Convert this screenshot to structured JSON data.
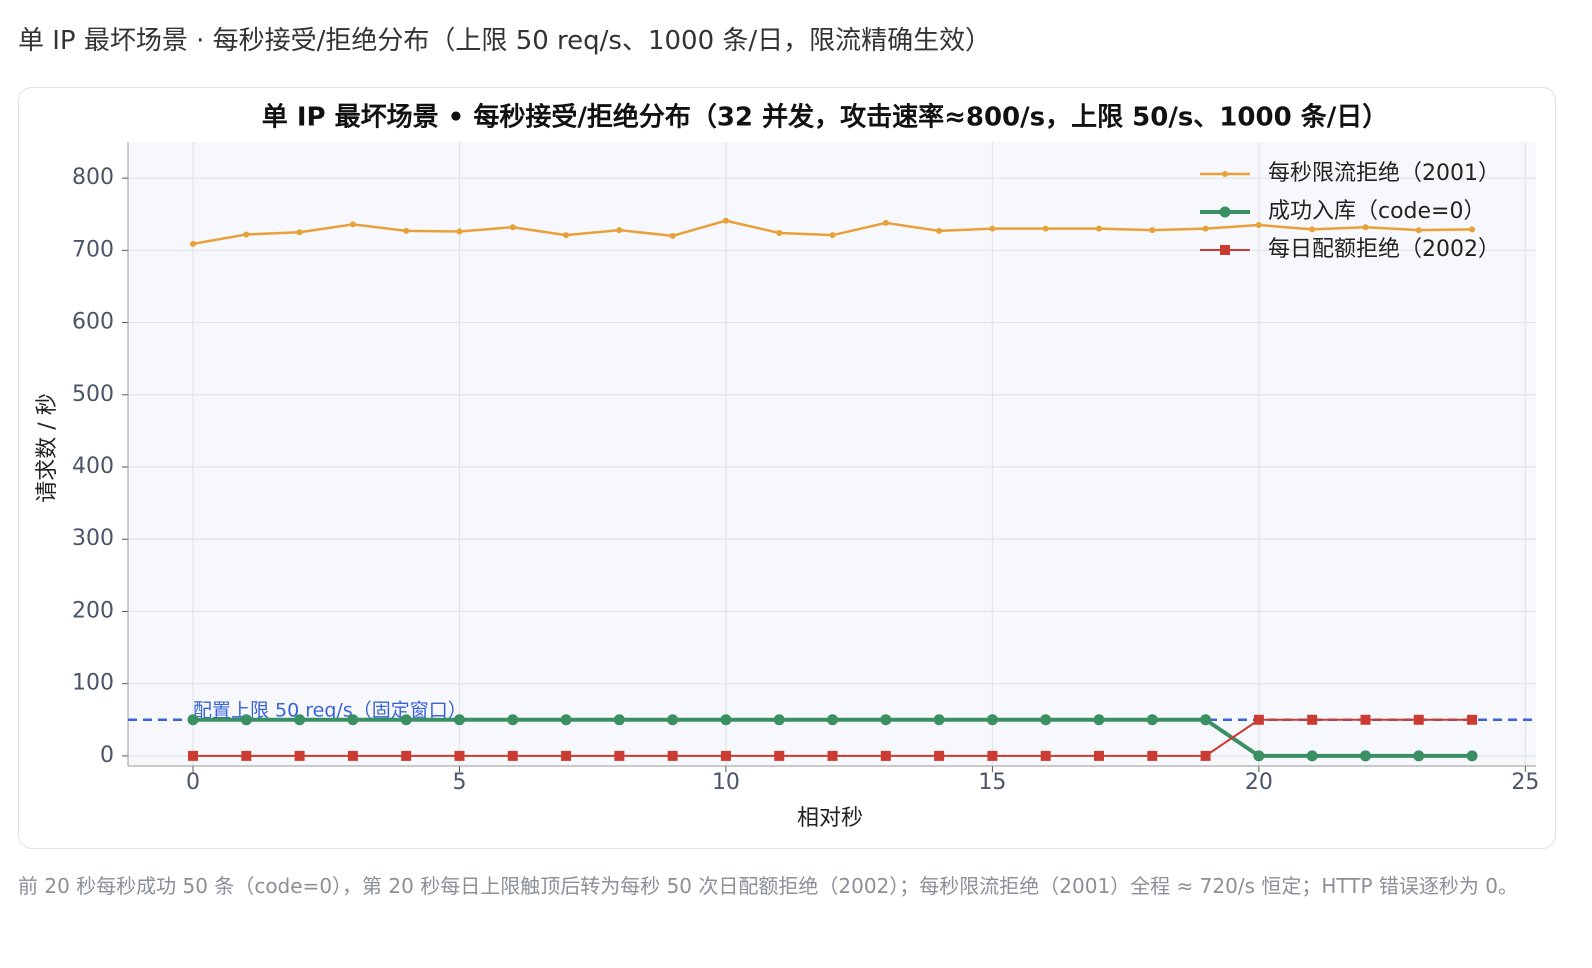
{
  "heading": "单 IP 最坏场景 · 每秒接受/拒绝分布（上限 50 req/s、1000 条/日，限流精确生效）",
  "caption": "前 20 秒每秒成功 50 条（code=0），第 20 秒每日上限触顶后转为每秒 50 次日配额拒绝（2002）；每秒限流拒绝（2001）全程 ≈ 720/s 恒定；HTTP 错误逐秒为 0。",
  "chart_data": {
    "type": "line",
    "title": "单 IP 最坏场景 • 每秒接受/拒绝分布（32 并发，攻击速率≈800/s，上限 50/s、1000 条/日）",
    "x_label": "相对秒",
    "y_label": "请求数 / 秒",
    "x": [
      0,
      1,
      2,
      3,
      4,
      5,
      6,
      7,
      8,
      9,
      10,
      11,
      12,
      13,
      14,
      15,
      16,
      17,
      18,
      19,
      20,
      21,
      22,
      23,
      24
    ],
    "series": [
      {
        "name": "每秒限流拒绝（2001）",
        "color": "#e8a03a",
        "marker": "dot",
        "values": [
          709,
          722,
          725,
          736,
          727,
          726,
          732,
          721,
          728,
          720,
          741,
          724,
          721,
          738,
          727,
          730,
          730,
          730,
          728,
          730,
          735,
          729,
          732,
          728,
          729
        ]
      },
      {
        "name": "成功入库（code=0）",
        "color": "#3a8f63",
        "marker": "circle",
        "values": [
          50,
          50,
          50,
          50,
          50,
          50,
          50,
          50,
          50,
          50,
          50,
          50,
          50,
          50,
          50,
          50,
          50,
          50,
          50,
          50,
          0,
          0,
          0,
          0,
          0
        ]
      },
      {
        "name": "每日配额拒绝（2002）",
        "color": "#cc3b32",
        "marker": "square",
        "values": [
          0,
          0,
          0,
          0,
          0,
          0,
          0,
          0,
          0,
          0,
          0,
          0,
          0,
          0,
          0,
          0,
          0,
          0,
          0,
          0,
          50,
          50,
          50,
          50,
          50
        ]
      }
    ],
    "hline": {
      "value": 50,
      "label": "配置上限 50 req/s（固定窗口）",
      "color": "#3a62d9"
    },
    "xlim": [
      -1.22,
      25.2
    ],
    "ylim": [
      -14,
      850
    ],
    "xticks": [
      0,
      5,
      10,
      15,
      20,
      25
    ],
    "yticks": [
      0,
      100,
      200,
      300,
      400,
      500,
      600,
      700,
      800
    ],
    "grid": true,
    "legend": "upper right"
  }
}
